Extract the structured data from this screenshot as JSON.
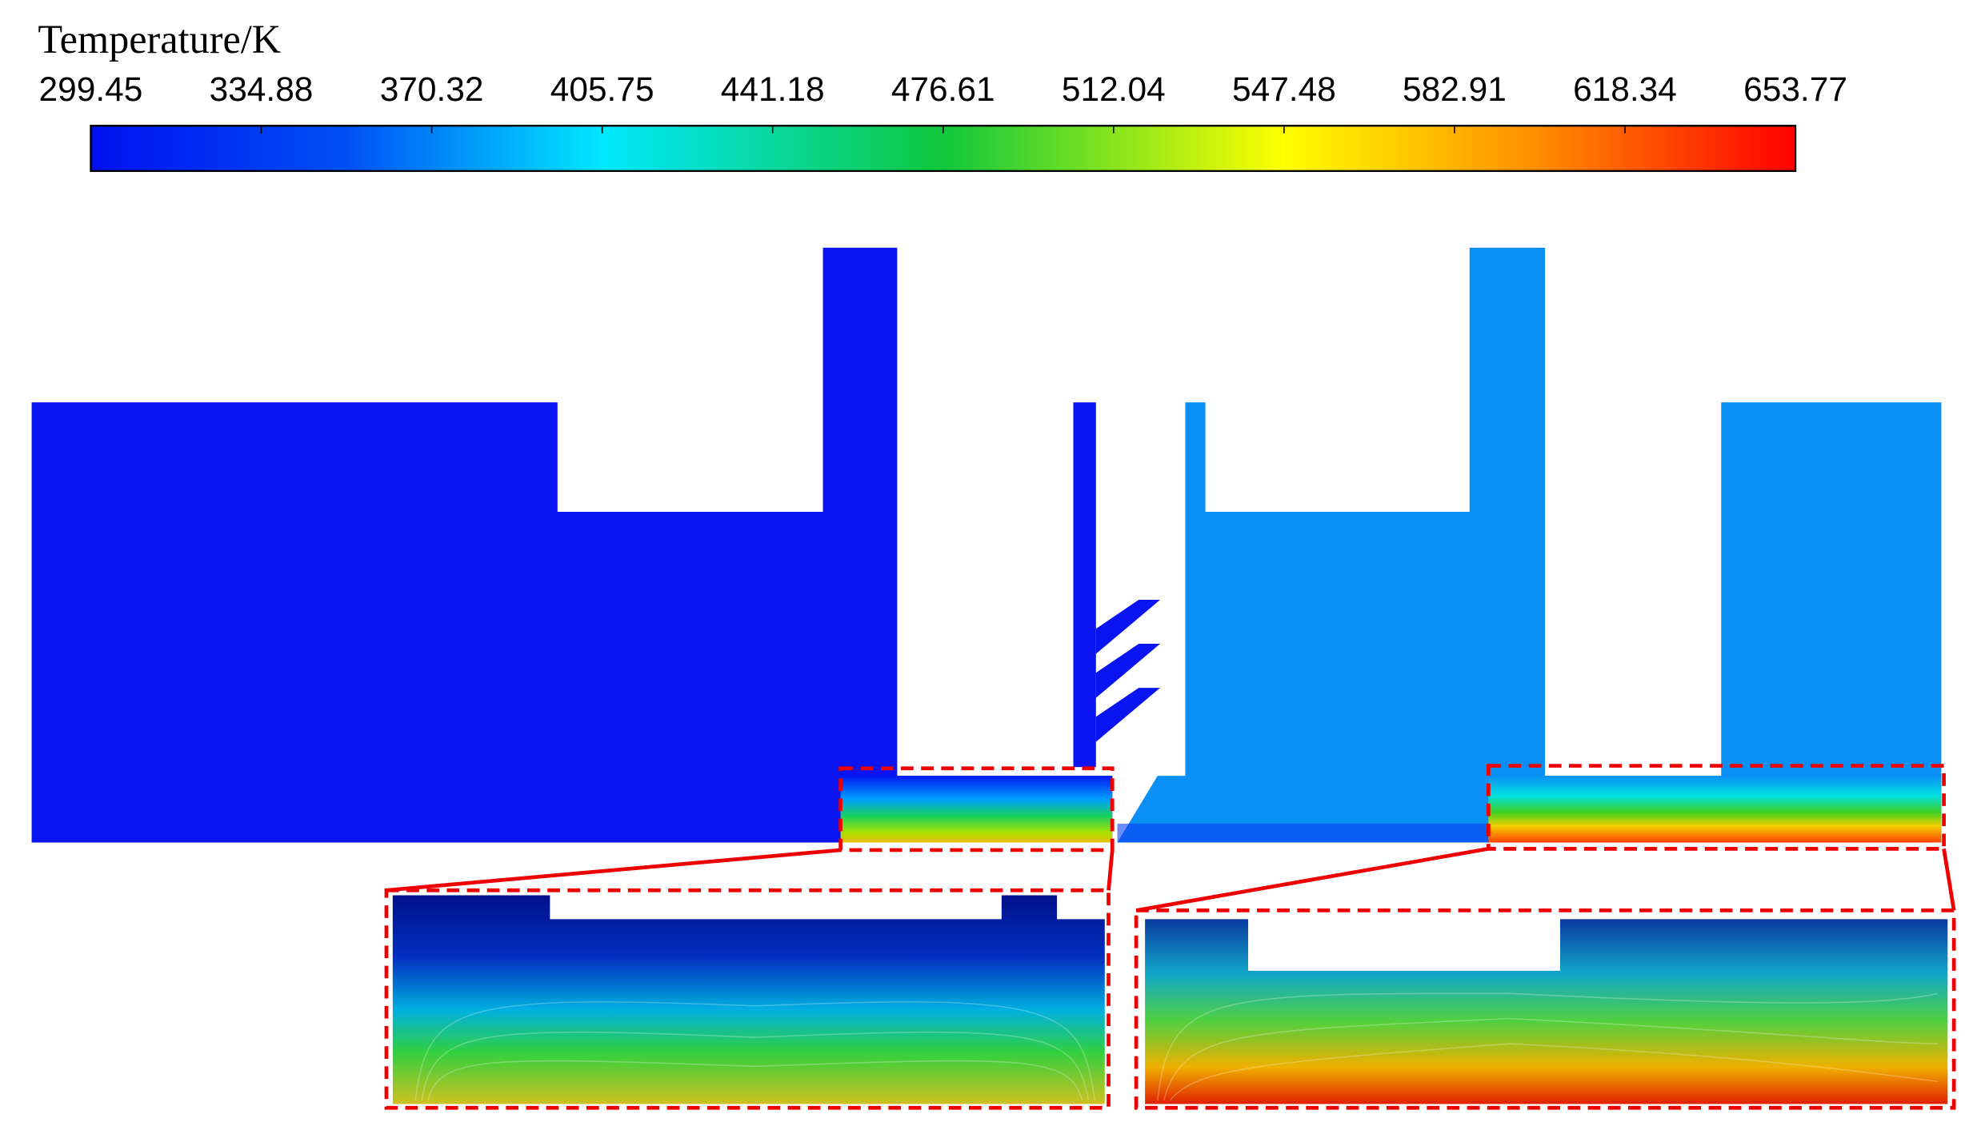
{
  "colorbar": {
    "title": "Temperature/K",
    "ticks": [
      299.45,
      334.88,
      370.32,
      405.75,
      441.18,
      476.61,
      512.04,
      547.48,
      582.91,
      618.34,
      653.77
    ]
  }
}
